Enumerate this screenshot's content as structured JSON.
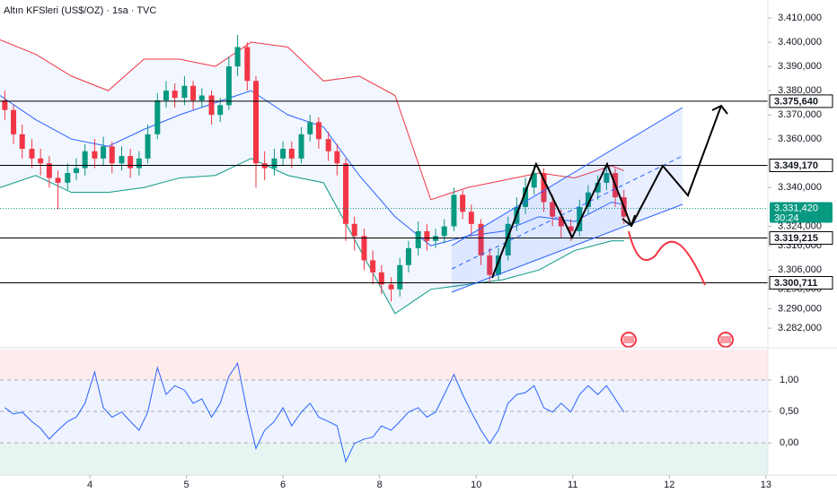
{
  "chart_data": [
    {
      "type": "candlestick",
      "title": "Altın KFSleri (US$/OZ) · 1sa · TVC",
      "x": [
        3.12,
        3.21,
        3.3,
        3.4,
        3.49,
        3.58,
        3.67,
        3.77,
        3.86,
        3.95,
        4.05,
        4.14,
        4.23,
        4.33,
        4.42,
        4.51,
        4.6,
        4.7,
        4.79,
        4.88,
        4.98,
        5.07,
        5.16,
        5.26,
        5.35,
        5.44,
        5.53,
        5.63,
        5.72,
        5.81,
        5.91,
        6.0,
        6.09,
        6.19,
        6.28,
        6.37,
        6.47,
        6.56,
        6.65,
        6.74,
        6.84,
        6.93,
        7.02,
        7.12,
        7.21,
        7.3,
        7.4,
        7.49,
        7.58,
        7.67,
        7.77,
        7.86,
        7.95,
        8.05,
        8.14,
        8.23,
        8.33,
        8.42,
        8.51,
        8.6,
        8.7,
        8.79,
        8.88,
        8.98,
        9.07,
        9.16,
        9.26,
        9.35,
        9.44,
        9.53
      ],
      "open": [
        3376,
        3372,
        3362,
        3356,
        3352,
        3350,
        3344,
        3342,
        3346,
        3348,
        3355,
        3352,
        3357,
        3350,
        3353,
        3348,
        3352,
        3362,
        3376,
        3380,
        3377,
        3382,
        3376,
        3378,
        3370,
        3374,
        3390,
        3398,
        3384,
        3350,
        3348,
        3352,
        3356,
        3352,
        3362,
        3367,
        3360,
        3355,
        3350,
        3325,
        3320,
        3310,
        3305,
        3300,
        3298,
        3308,
        3315,
        3322,
        3318,
        3320,
        3324,
        3337,
        3330,
        3325,
        3312,
        3304,
        3312,
        3325,
        3332,
        3340,
        3346,
        3334,
        3328,
        3324,
        3322,
        3332,
        3338,
        3342,
        3346,
        3336
      ],
      "high": [
        3380,
        3374,
        3366,
        3360,
        3356,
        3353,
        3347,
        3350,
        3352,
        3358,
        3360,
        3361,
        3359,
        3357,
        3356,
        3355,
        3366,
        3379,
        3384,
        3383,
        3386,
        3384,
        3381,
        3380,
        3377,
        3394,
        3403,
        3400,
        3386,
        3355,
        3356,
        3359,
        3359,
        3365,
        3370,
        3369,
        3363,
        3358,
        3352,
        3328,
        3323,
        3314,
        3308,
        3303,
        3311,
        3318,
        3326,
        3325,
        3323,
        3327,
        3340,
        3339,
        3333,
        3327,
        3315,
        3315,
        3328,
        3336,
        3344,
        3349,
        3348,
        3337,
        3331,
        3327,
        3335,
        3341,
        3345,
        3349,
        3348,
        3339
      ],
      "low": [
        3368,
        3358,
        3352,
        3348,
        3345,
        3340,
        3331,
        3339,
        3343,
        3345,
        3348,
        3349,
        3346,
        3347,
        3344,
        3345,
        3350,
        3360,
        3373,
        3373,
        3374,
        3372,
        3373,
        3366,
        3367,
        3372,
        3386,
        3380,
        3340,
        3343,
        3345,
        3349,
        3348,
        3350,
        3359,
        3356,
        3351,
        3345,
        3318,
        3314,
        3306,
        3300,
        3296,
        3293,
        3295,
        3305,
        3312,
        3314,
        3315,
        3317,
        3322,
        3327,
        3320,
        3308,
        3301,
        3302,
        3310,
        3322,
        3329,
        3337,
        3330,
        3324,
        3319,
        3318,
        3320,
        3329,
        3335,
        3339,
        3332,
        3325
      ],
      "close": [
        3372,
        3362,
        3356,
        3352,
        3350,
        3344,
        3342,
        3346,
        3348,
        3355,
        3352,
        3357,
        3350,
        3353,
        3348,
        3352,
        3362,
        3376,
        3380,
        3377,
        3382,
        3376,
        3378,
        3370,
        3374,
        3390,
        3398,
        3384,
        3350,
        3348,
        3352,
        3356,
        3352,
        3362,
        3367,
        3360,
        3355,
        3350,
        3325,
        3320,
        3310,
        3305,
        3300,
        3298,
        3308,
        3315,
        3322,
        3318,
        3320,
        3324,
        3337,
        3330,
        3325,
        3312,
        3304,
        3312,
        3325,
        3332,
        3340,
        3346,
        3334,
        3328,
        3324,
        3322,
        3332,
        3338,
        3342,
        3346,
        3336,
        3328
      ],
      "up_color": "#089981",
      "down_color": "#f23645",
      "band_x": [
        3.07,
        3.44,
        3.81,
        4.19,
        4.56,
        4.93,
        5.3,
        5.67,
        6.05,
        6.42,
        6.79,
        7.16,
        7.53,
        7.91,
        8.28,
        8.65,
        9.02,
        9.4,
        9.53
      ],
      "bands": [
        {
          "color": "#f23645",
          "values": [
            3401,
            3395,
            3386,
            3380,
            3393,
            3393,
            3390,
            3400,
            3398,
            3384,
            3386,
            3378,
            3335,
            3340,
            3343,
            3346,
            3344,
            3349,
            3347
          ]
        },
        {
          "color": "#2962ff",
          "values": [
            3378,
            3368,
            3360,
            3357,
            3364,
            3370,
            3375,
            3380,
            3370,
            3365,
            3345,
            3328,
            3316,
            3320,
            3322,
            3328,
            3326,
            3334,
            3333
          ]
        },
        {
          "color": "#089981",
          "values": [
            3340,
            3345,
            3338,
            3338,
            3340,
            3344,
            3345,
            3352,
            3345,
            3342,
            3315,
            3288,
            3298,
            3300,
            3302,
            3306,
            3314,
            3318,
            3318
          ]
        }
      ],
      "levels": [
        {
          "value": 3375.64,
          "label": "3.375,640"
        },
        {
          "value": 3349.17,
          "label": "3.349,170"
        },
        {
          "value": 3319.215,
          "label": "3.319,215"
        },
        {
          "value": 3300.711,
          "label": "3.300,711"
        }
      ],
      "last_price": {
        "value": 3331.42,
        "label": "3.331,420",
        "countdown": "30:24",
        "color": "#089981"
      },
      "ylim": [
        3275,
        3417.4
      ],
      "yticks": [
        {
          "value": 3410,
          "label": "3.410,000"
        },
        {
          "value": 3400,
          "label": "3.400,000"
        },
        {
          "value": 3390,
          "label": "3.390,000"
        },
        {
          "value": 3380,
          "label": "3.380,000"
        },
        {
          "value": 3370,
          "label": "3.370,000"
        },
        {
          "value": 3360,
          "label": "3.360,000"
        },
        {
          "value": 3340,
          "label": "3.340,000"
        },
        {
          "value": 3324,
          "label": "3.324,000"
        },
        {
          "value": 3316,
          "label": "3.316,000"
        },
        {
          "value": 3306,
          "label": "3.306,000"
        },
        {
          "value": 3298,
          "label": "3.298,000"
        },
        {
          "value": 3290,
          "label": "3.290,000"
        },
        {
          "value": 3282,
          "label": "3.282,000"
        }
      ],
      "xlim": [
        3.07,
        11.02
      ],
      "xticks": [
        4,
        5,
        6,
        {
          "value": 7,
          "label": "8"
        },
        {
          "value": 8,
          "label": "10"
        },
        {
          "value": 9,
          "label": "11"
        },
        {
          "value": 10,
          "label": "12"
        },
        {
          "value": 11,
          "label": "13"
        }
      ]
    },
    {
      "type": "line",
      "x": [
        3.12,
        3.21,
        3.3,
        3.4,
        3.49,
        3.58,
        3.67,
        3.77,
        3.86,
        3.95,
        4.05,
        4.14,
        4.23,
        4.33,
        4.42,
        4.51,
        4.6,
        4.7,
        4.79,
        4.88,
        4.98,
        5.07,
        5.16,
        5.26,
        5.35,
        5.44,
        5.53,
        5.63,
        5.72,
        5.81,
        5.91,
        6.0,
        6.09,
        6.19,
        6.28,
        6.37,
        6.47,
        6.56,
        6.65,
        6.74,
        6.84,
        6.93,
        7.02,
        7.12,
        7.21,
        7.3,
        7.4,
        7.49,
        7.58,
        7.67,
        7.77,
        7.86,
        7.95,
        8.05,
        8.14,
        8.23,
        8.33,
        8.42,
        8.51,
        8.6,
        8.7,
        8.79,
        8.88,
        8.98,
        9.07,
        9.16,
        9.26,
        9.35,
        9.44,
        9.53
      ],
      "values": [
        0.56,
        0.46,
        0.49,
        0.34,
        0.23,
        0.06,
        0.2,
        0.34,
        0.41,
        0.63,
        1.13,
        0.56,
        0.41,
        0.49,
        0.34,
        0.2,
        0.49,
        1.2,
        0.77,
        0.91,
        0.84,
        0.63,
        0.7,
        0.41,
        0.63,
        1.06,
        1.27,
        0.49,
        -0.09,
        0.2,
        0.34,
        0.56,
        0.27,
        0.49,
        0.63,
        0.41,
        0.34,
        0.27,
        -0.3,
        -0.01,
        0.06,
        0.09,
        0.27,
        0.2,
        0.34,
        0.49,
        0.56,
        0.41,
        0.49,
        0.77,
        1.09,
        0.77,
        0.49,
        0.2,
        -0.01,
        0.2,
        0.63,
        0.77,
        0.8,
        0.91,
        0.56,
        0.49,
        0.63,
        0.49,
        0.77,
        0.91,
        0.77,
        0.91,
        0.7,
        0.49
      ],
      "color": "#2962ff",
      "ylim": [
        -0.514,
        1.486
      ],
      "yticks": [
        {
          "value": 1,
          "label": "1,00"
        },
        {
          "value": 0.5,
          "label": "0,50"
        },
        {
          "value": 0,
          "label": "0,00"
        }
      ],
      "xlim": [
        3.07,
        11.02
      ]
    }
  ]
}
